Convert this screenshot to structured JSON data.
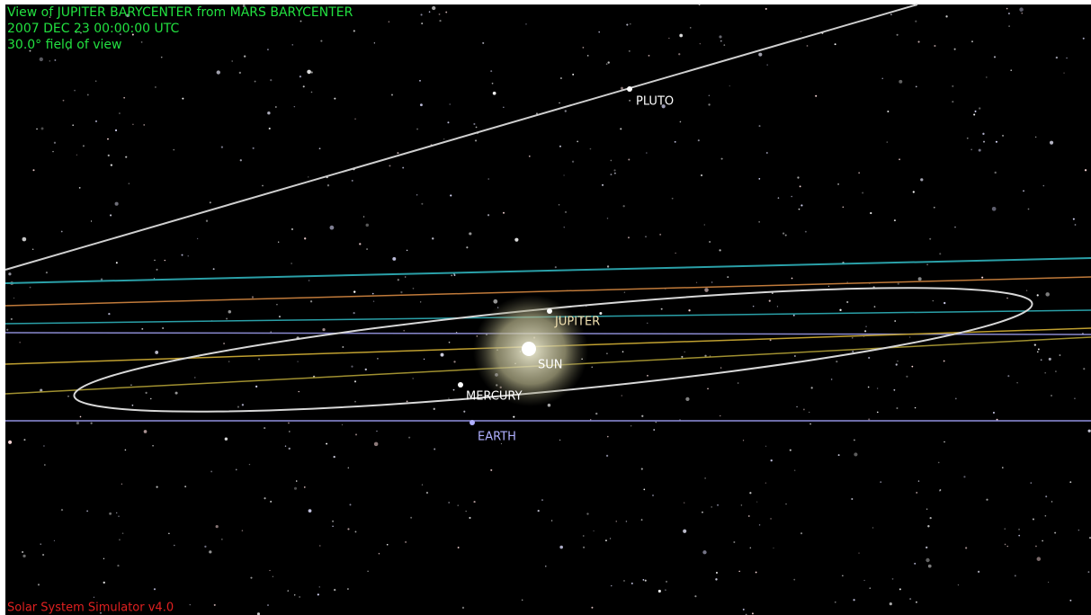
{
  "header": {
    "lines": [
      "View of JUPITER BARYCENTER from MARS BARYCENTER",
      "2007 DEC 23 00:00:00 UTC",
      "30.0° field of view"
    ]
  },
  "bodies": [
    {
      "label": "PLUTO"
    },
    {
      "label": "JUPITER"
    },
    {
      "label": "SUN"
    },
    {
      "label": "MERCURY"
    },
    {
      "label": "EARTH"
    }
  ],
  "footer": {
    "text": "Solar System Simulator v4.0"
  }
}
